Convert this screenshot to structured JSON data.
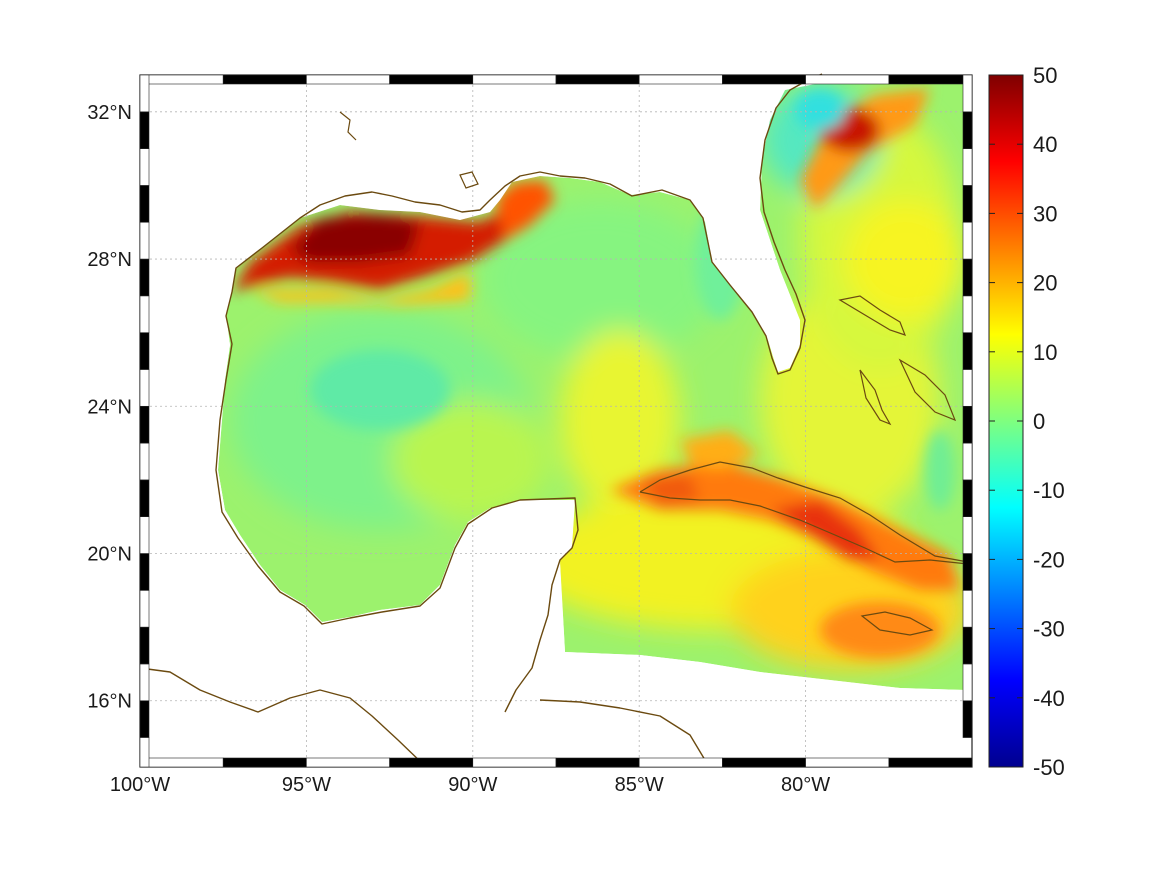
{
  "map": {
    "region": "Gulf of Mexico",
    "lon_range": [
      -100,
      -75
    ],
    "lat_range": [
      14.2,
      33
    ],
    "lon_ticks": [
      {
        "value": -100,
        "label": "100°W"
      },
      {
        "value": -95,
        "label": "95°W"
      },
      {
        "value": -90,
        "label": "90°W"
      },
      {
        "value": -85,
        "label": "85°W"
      },
      {
        "value": -80,
        "label": "80°W"
      }
    ],
    "lat_ticks": [
      {
        "value": 16,
        "label": "16°N"
      },
      {
        "value": 20,
        "label": "20°N"
      },
      {
        "value": 24,
        "label": "24°N"
      },
      {
        "value": 28,
        "label": "28°N"
      },
      {
        "value": 32,
        "label": "32°N"
      }
    ],
    "grid": true,
    "frame_style": "alternating black-white",
    "colormap": "jet",
    "coastline_color": "#6b4a10"
  },
  "colorbar": {
    "min": -50,
    "max": 50,
    "ticks": [
      {
        "value": 50,
        "label": "50"
      },
      {
        "value": 40,
        "label": "40"
      },
      {
        "value": 30,
        "label": "30"
      },
      {
        "value": 20,
        "label": "20"
      },
      {
        "value": 10,
        "label": "10"
      },
      {
        "value": 0,
        "label": "0"
      },
      {
        "value": -10,
        "label": "-10"
      },
      {
        "value": -20,
        "label": "-20"
      },
      {
        "value": -30,
        "label": "-30"
      },
      {
        "value": -40,
        "label": "-40"
      },
      {
        "value": -50,
        "label": "-50"
      }
    ],
    "placement": "right"
  }
}
